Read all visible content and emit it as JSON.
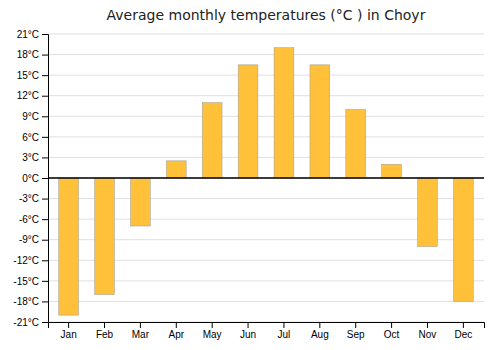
{
  "chart_data": {
    "type": "bar",
    "title": "Average monthly temperatures (°C ) in Choyr",
    "categories": [
      "Jan",
      "Feb",
      "Mar",
      "Apr",
      "May",
      "Jun",
      "Jul",
      "Aug",
      "Sep",
      "Oct",
      "Nov",
      "Dec"
    ],
    "values": [
      -20,
      -17,
      -7,
      2.5,
      11,
      16.5,
      19,
      16.5,
      10,
      2,
      -10,
      -18
    ],
    "color": "#FFC03A",
    "ylim": [
      -21,
      21
    ],
    "yticks": [
      {
        "value": -21,
        "label": "-21°C"
      },
      {
        "value": -18,
        "label": "-18°C"
      },
      {
        "value": -15,
        "label": "-15°C"
      },
      {
        "value": -12,
        "label": "-12°C"
      },
      {
        "value": -9,
        "label": "-9°C"
      },
      {
        "value": -6,
        "label": "-6°C"
      },
      {
        "value": -3,
        "label": "-3°C"
      },
      {
        "value": 0,
        "label": "0°C"
      },
      {
        "value": 3,
        "label": "3°C"
      },
      {
        "value": 6,
        "label": "6°C"
      },
      {
        "value": 9,
        "label": "9°C"
      },
      {
        "value": 12,
        "label": "12°C"
      },
      {
        "value": 15,
        "label": "15°C"
      },
      {
        "value": 18,
        "label": "18°C"
      },
      {
        "value": 21,
        "label": "21°C"
      }
    ],
    "grid": true
  }
}
